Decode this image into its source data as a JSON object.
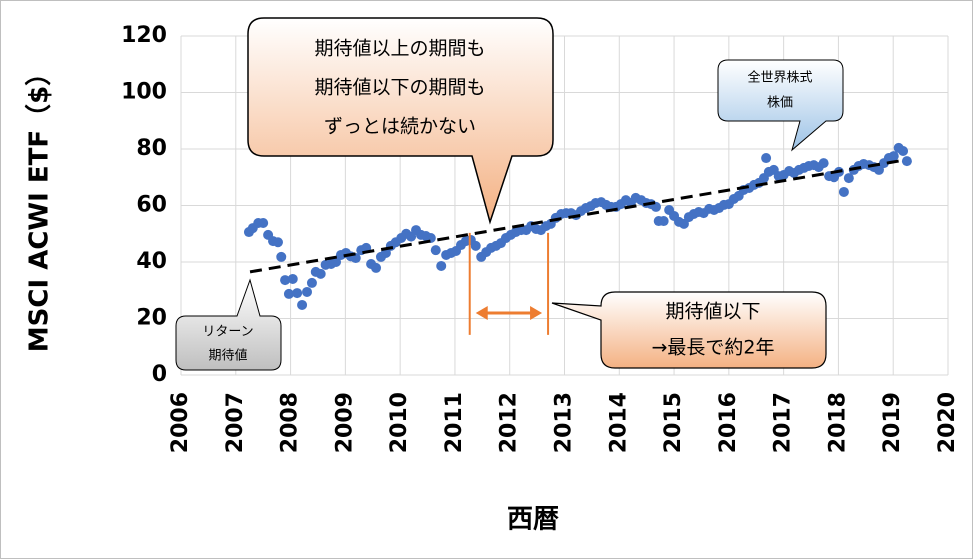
{
  "chart_data": {
    "type": "scatter",
    "ylabel": "MSCI ACWI ETF（$）",
    "xlabel": "西暦",
    "xlim": [
      2006,
      2020
    ],
    "xticks": [
      2006,
      2007,
      2008,
      2009,
      2010,
      2011,
      2012,
      2013,
      2014,
      2015,
      2016,
      2017,
      2018,
      2019,
      2020
    ],
    "ylim": [
      0,
      120
    ],
    "yticks": [
      0,
      20,
      40,
      60,
      80,
      100,
      120
    ],
    "grid": true,
    "color": "#4472c4",
    "x": [
      2007.24,
      2007.31,
      2007.41,
      2007.5,
      2007.59,
      2007.68,
      2007.77,
      2007.83,
      2007.9,
      2007.97,
      2008.04,
      2008.12,
      2008.21,
      2008.3,
      2008.39,
      2008.46,
      2008.55,
      2008.64,
      2008.74,
      2008.83,
      2008.92,
      2009.01,
      2009.1,
      2009.19,
      2009.29,
      2009.38,
      2009.47,
      2009.56,
      2009.65,
      2009.74,
      2009.83,
      2009.92,
      2010.02,
      2010.11,
      2010.2,
      2010.29,
      2010.38,
      2010.47,
      2010.56,
      2010.65,
      2010.75,
      2010.84,
      2010.93,
      2011.02,
      2011.11,
      2011.2,
      2011.29,
      2011.38,
      2011.48,
      2011.57,
      2011.66,
      2011.75,
      2011.84,
      2011.93,
      2012.02,
      2012.11,
      2012.21,
      2012.3,
      2012.39,
      2012.48,
      2012.57,
      2012.66,
      2012.75,
      2012.84,
      2012.94,
      2013.03,
      2013.12,
      2013.21,
      2013.3,
      2013.39,
      2013.48,
      2013.57,
      2013.67,
      2013.76,
      2013.85,
      2013.94,
      2014.03,
      2014.12,
      2014.21,
      2014.3,
      2014.4,
      2014.49,
      2014.58,
      2014.67,
      2014.72,
      2014.81,
      2014.91,
      2015.0,
      2015.09,
      2015.18,
      2015.27,
      2015.36,
      2015.45,
      2015.54,
      2015.64,
      2015.73,
      2015.82,
      2015.91,
      2016.0,
      2016.09,
      2016.18,
      2016.27,
      2016.37,
      2016.46,
      2016.55,
      2016.64,
      2016.68,
      2016.73,
      2016.82,
      2016.91,
      2017.0,
      2017.1,
      2017.19,
      2017.28,
      2017.37,
      2017.46,
      2017.55,
      2017.64,
      2017.73,
      2017.83,
      2017.92,
      2018.01,
      2018.1,
      2018.19,
      2018.28,
      2018.37,
      2018.46,
      2018.56,
      2018.65,
      2018.74,
      2018.83,
      2018.92,
      2019.01,
      2019.1,
      2019.18,
      2019.25
    ],
    "values": [
      50.6,
      52,
      53.8,
      53.8,
      49.6,
      47.4,
      47,
      41.8,
      33.6,
      28.7,
      34,
      29,
      24.8,
      29.4,
      32.6,
      36.5,
      35.8,
      39,
      39.3,
      40,
      42.5,
      43.2,
      42,
      41.4,
      44.2,
      45,
      39.3,
      37.9,
      41.8,
      43.2,
      45.7,
      47,
      48.5,
      50,
      49,
      51.3,
      49.6,
      49.2,
      48.5,
      44.2,
      38.6,
      42.5,
      43.2,
      43.9,
      46,
      47.4,
      47.8,
      45.7,
      41.8,
      43.5,
      45,
      45.7,
      46.7,
      48.5,
      49.6,
      50.6,
      51.3,
      51.3,
      52.7,
      51.7,
      51.3,
      52.7,
      53.5,
      55.6,
      57,
      57.3,
      57.3,
      56.6,
      58,
      59.1,
      59.8,
      60.9,
      61.2,
      60.2,
      59.5,
      59.5,
      60.5,
      61.9,
      60.9,
      62.7,
      61.9,
      60.9,
      60.5,
      59.5,
      54.5,
      54.5,
      58.4,
      56.3,
      54.2,
      53.5,
      55.9,
      57,
      57.7,
      57.3,
      58.8,
      58.4,
      59.1,
      60.2,
      60.5,
      62.3,
      63.4,
      65.5,
      66.2,
      67.3,
      68,
      69.7,
      76.8,
      71.9,
      72.6,
      70.4,
      70.8,
      72.2,
      71.5,
      72.6,
      73.3,
      74,
      74.3,
      73.6,
      75,
      70.4,
      70,
      71.9,
      64.8,
      69.7,
      72.6,
      74,
      74.7,
      74.3,
      73.6,
      72.6,
      75,
      76.8,
      77.5,
      80.4,
      79.3,
      75.7
    ],
    "trend": {
      "x": [
        2007.26,
        2019.21
      ],
      "values": [
        36.5,
        76.1
      ],
      "color": "#000000"
    },
    "highlight": {
      "x": [
        2011.27,
        2012.7
      ],
      "values": [
        50.3,
        14.2
      ],
      "color": "#ed7d31"
    },
    "annotations": [
      {
        "lines": [
          "期待値以上の期間も",
          "期待値以下の期間も",
          "ずっとは続かない"
        ]
      },
      {
        "lines": [
          "全世界株式",
          "株価"
        ]
      },
      {
        "lines": [
          "リターン",
          "期待値"
        ]
      },
      {
        "lines": [
          "期待値以下",
          "→最長で約2年"
        ]
      }
    ]
  }
}
